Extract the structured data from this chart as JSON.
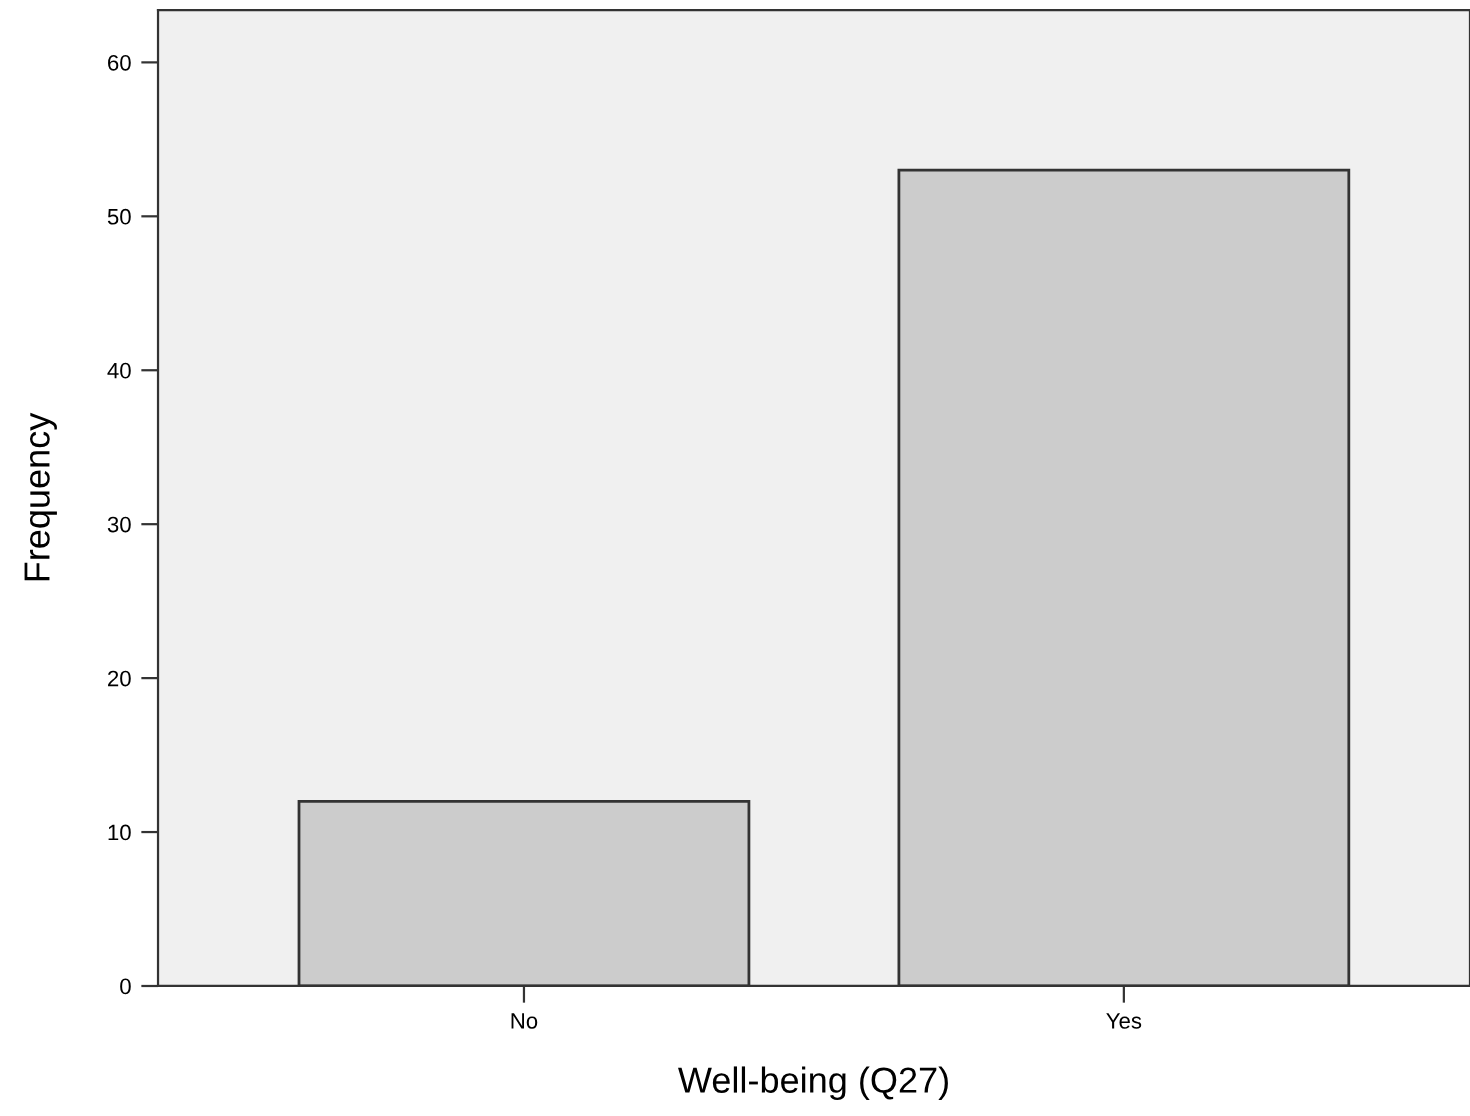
{
  "chart_data": {
    "type": "bar",
    "xlabel": "Well-being (Q27)",
    "ylabel": "Frequency",
    "categories": [
      "No",
      "Yes"
    ],
    "values": [
      12,
      53
    ],
    "color": "#cccccc",
    "ylim": [
      0,
      63.4
    ],
    "yticks": [
      0,
      10,
      20,
      30,
      40,
      50,
      60
    ],
    "grid": false
  }
}
